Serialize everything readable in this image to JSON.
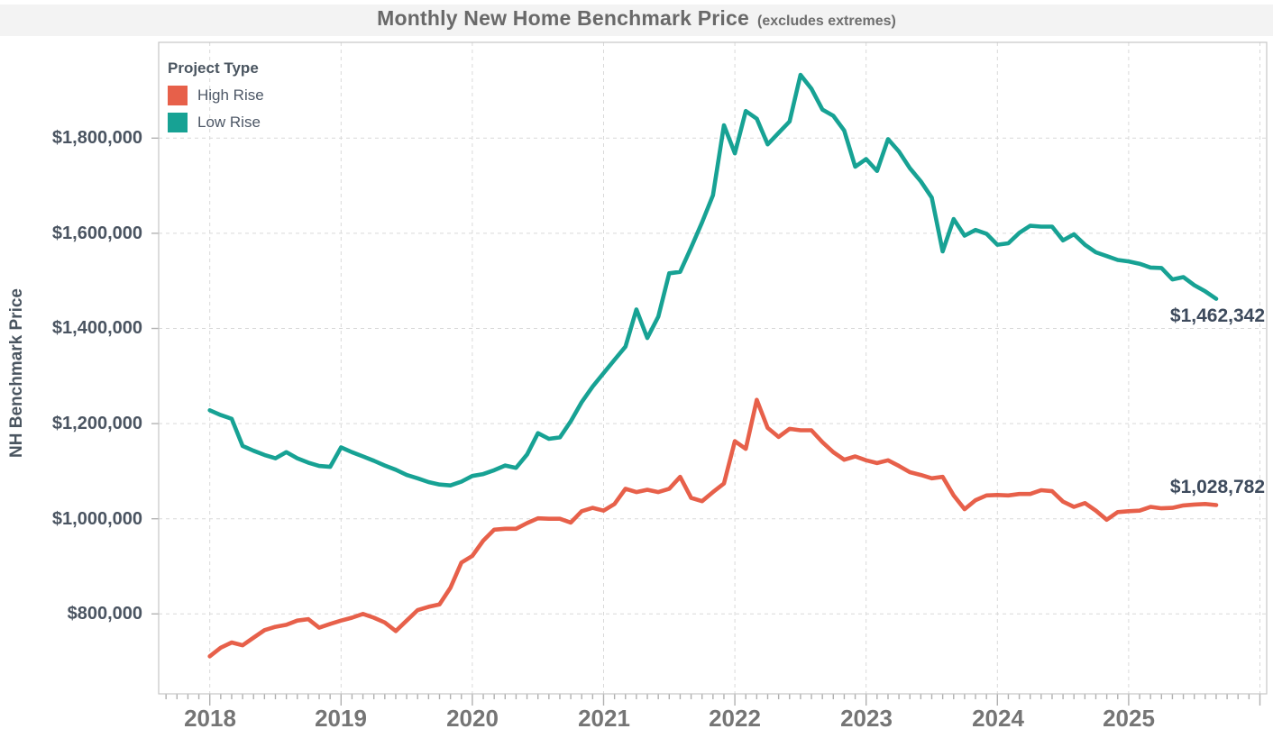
{
  "header": {
    "title": "Monthly New Home Benchmark Price",
    "subtitle": "(excludes extremes)"
  },
  "legend": {
    "title": "Project Type",
    "items": [
      {
        "label": "High Rise",
        "color": "#e7604a"
      },
      {
        "label": "Low Rise",
        "color": "#17a294"
      }
    ]
  },
  "y_axis": {
    "title": "NH Benchmark Price",
    "ticks": [
      {
        "label": "$800,000",
        "value": 800000
      },
      {
        "label": "$1,000,000",
        "value": 1000000
      },
      {
        "label": "$1,200,000",
        "value": 1200000
      },
      {
        "label": "$1,400,000",
        "value": 1400000
      },
      {
        "label": "$1,600,000",
        "value": 1600000
      },
      {
        "label": "$1,800,000",
        "value": 1800000
      }
    ]
  },
  "x_axis": {
    "years": [
      {
        "label": "2018"
      },
      {
        "label": "2019"
      },
      {
        "label": "2020"
      },
      {
        "label": "2021"
      },
      {
        "label": "2022"
      },
      {
        "label": "2023"
      },
      {
        "label": "2024"
      },
      {
        "label": "2025"
      }
    ]
  },
  "annotations": [
    {
      "series": "Low Rise",
      "text": "$1,462,342",
      "value": 1462342
    },
    {
      "series": "High Rise",
      "text": "$1,028,782",
      "value": 1028782
    }
  ],
  "chart_data": {
    "type": "line",
    "title": "Monthly New Home Benchmark Price (excludes extremes)",
    "ylabel": "NH Benchmark Price",
    "x_unit": "month",
    "x_start": "2018-01",
    "x_end": "2025-09",
    "ylim": [
      700000,
      1960000
    ],
    "grid": "dashed",
    "legend_position": "top-left",
    "series": [
      {
        "name": "High Rise",
        "color": "#e7604a",
        "values": [
          711000,
          729000,
          740000,
          734000,
          750000,
          766000,
          773000,
          777000,
          786000,
          789000,
          771000,
          779000,
          786000,
          792000,
          800000,
          792000,
          782000,
          764000,
          786000,
          808000,
          815000,
          820000,
          855000,
          908000,
          922000,
          954000,
          977000,
          979000,
          979000,
          991000,
          1001000,
          1000000,
          1000000,
          992000,
          1016000,
          1023000,
          1017000,
          1031000,
          1063000,
          1056000,
          1061000,
          1056000,
          1063000,
          1088000,
          1044000,
          1037000,
          1056000,
          1074000,
          1163000,
          1147000,
          1250000,
          1191000,
          1172000,
          1189000,
          1186000,
          1186000,
          1161000,
          1140000,
          1124000,
          1131000,
          1123000,
          1117000,
          1123000,
          1111000,
          1098000,
          1092000,
          1085000,
          1088000,
          1049000,
          1020000,
          1039000,
          1049000,
          1050000,
          1049000,
          1052000,
          1052000,
          1060000,
          1058000,
          1036000,
          1025000,
          1033000,
          1017000,
          998000,
          1014000,
          1016000,
          1017000,
          1025000,
          1022000,
          1023000,
          1028000,
          1030000,
          1031000,
          1028782
        ]
      },
      {
        "name": "Low Rise",
        "color": "#17a294",
        "values": [
          1228000,
          1218000,
          1210000,
          1153000,
          1143000,
          1134000,
          1127000,
          1140000,
          1127000,
          1118000,
          1111000,
          1109000,
          1150000,
          1140000,
          1131000,
          1122000,
          1112000,
          1103000,
          1092000,
          1085000,
          1077000,
          1072000,
          1070000,
          1078000,
          1090000,
          1094000,
          1102000,
          1112000,
          1107000,
          1135000,
          1180000,
          1168000,
          1171000,
          1205000,
          1245000,
          1278000,
          1306000,
          1334000,
          1362000,
          1440000,
          1380000,
          1425000,
          1516000,
          1519000,
          1570000,
          1623000,
          1680000,
          1827000,
          1768000,
          1857000,
          1841000,
          1787000,
          1811000,
          1835000,
          1933000,
          1904000,
          1860000,
          1847000,
          1816000,
          1740000,
          1756000,
          1731000,
          1798000,
          1772000,
          1737000,
          1709000,
          1675000,
          1562000,
          1630000,
          1595000,
          1607000,
          1599000,
          1576000,
          1579000,
          1601000,
          1616000,
          1614000,
          1614000,
          1585000,
          1598000,
          1576000,
          1560000,
          1552000,
          1544000,
          1541000,
          1536000,
          1528000,
          1527000,
          1503000,
          1508000,
          1491000,
          1478000,
          1462342
        ]
      }
    ]
  }
}
